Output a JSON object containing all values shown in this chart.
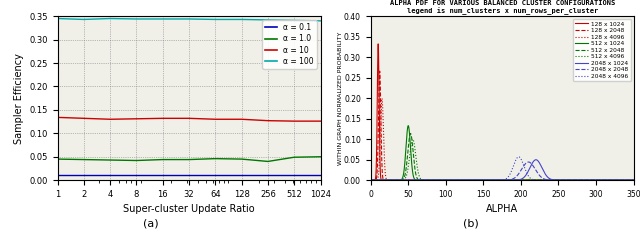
{
  "fig_width": 6.4,
  "fig_height": 2.31,
  "dpi": 100,
  "left_xlabel": "Super-cluster Update Ratio",
  "left_ylabel": "Sampler Efficiency",
  "left_xlim": [
    1,
    1024
  ],
  "left_ylim": [
    0,
    0.35
  ],
  "left_yticks": [
    0.0,
    0.05,
    0.1,
    0.15,
    0.2,
    0.25,
    0.3,
    0.35
  ],
  "left_xticks": [
    1,
    2,
    4,
    8,
    16,
    32,
    64,
    128,
    256,
    512,
    1024
  ],
  "alpha_lines": [
    {
      "label": "α = 0.1",
      "color": "#0000bb",
      "values": [
        0.01,
        0.01,
        0.01,
        0.01,
        0.01,
        0.01,
        0.01,
        0.01,
        0.01,
        0.01,
        0.01
      ]
    },
    {
      "label": "α = 1.0",
      "color": "#007700",
      "values": [
        0.045,
        0.044,
        0.043,
        0.042,
        0.044,
        0.044,
        0.046,
        0.045,
        0.04,
        0.049,
        0.05
      ]
    },
    {
      "label": "α = 10",
      "color": "#cc0000",
      "values": [
        0.134,
        0.132,
        0.13,
        0.131,
        0.132,
        0.132,
        0.13,
        0.13,
        0.127,
        0.126,
        0.126
      ]
    },
    {
      "label": "α = 100",
      "color": "#00aaaa",
      "values": [
        0.345,
        0.343,
        0.345,
        0.344,
        0.344,
        0.344,
        0.343,
        0.343,
        0.342,
        0.341,
        0.34
      ]
    }
  ],
  "right_title": "ALPHA PDF FOR VARIOUS BALANCED CLUSTER CONFIGURATIONS",
  "right_subtitle": "legend is num_clusters x num_rows_per_cluster",
  "right_xlabel": "ALPHA",
  "right_ylabel": "WITHIN GRAPH NORMALIZED PROBABILITY",
  "right_xlim": [
    0,
    350
  ],
  "right_ylim": [
    0.0,
    0.4
  ],
  "right_yticks": [
    0.0,
    0.05,
    0.1,
    0.15,
    0.2,
    0.25,
    0.3,
    0.35,
    0.4
  ],
  "right_xticks": [
    0,
    50,
    100,
    150,
    200,
    250,
    300,
    350
  ],
  "pdf_lines": [
    {
      "label": "128 x 1024",
      "color": "#cc0000",
      "linestyle": "-",
      "mean": 10,
      "std": 1.2
    },
    {
      "label": "128 x 2048",
      "color": "#cc0000",
      "linestyle": "--",
      "mean": 12,
      "std": 1.5
    },
    {
      "label": "128 x 4096",
      "color": "#cc0000",
      "linestyle": ":",
      "mean": 15,
      "std": 2.0
    },
    {
      "label": "512 x 1024",
      "color": "#007700",
      "linestyle": "-",
      "mean": 50,
      "std": 3.0
    },
    {
      "label": "512 x 2048",
      "color": "#007700",
      "linestyle": "--",
      "mean": 53,
      "std": 3.5
    },
    {
      "label": "512 x 4096",
      "color": "#007700",
      "linestyle": ":",
      "mean": 56,
      "std": 4.0
    },
    {
      "label": "2048 x 1024",
      "color": "#4444cc",
      "linestyle": "-",
      "mean": 220,
      "std": 8.0
    },
    {
      "label": "2048 x 2048",
      "color": "#4444cc",
      "linestyle": "--",
      "mean": 210,
      "std": 9.0
    },
    {
      "label": "2048 x 4096",
      "color": "#4444cc",
      "linestyle": ":",
      "mean": 197,
      "std": 7.0
    }
  ],
  "bg_color": "#f0f0e8"
}
